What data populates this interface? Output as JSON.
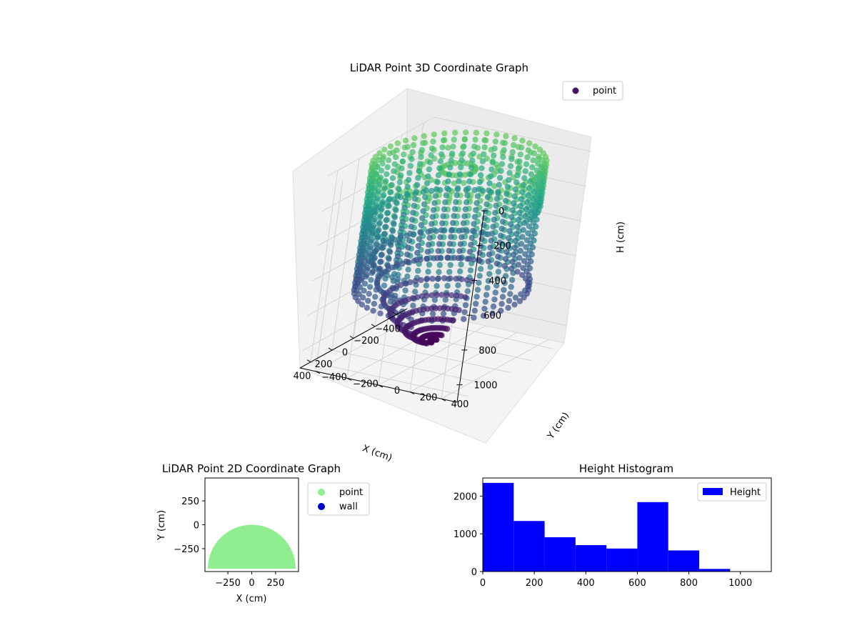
{
  "chart_data": [
    {
      "id": "lidar-3d",
      "type": "scatter",
      "title": "LiDAR Point 3D Coordinate Graph",
      "xlabel": "X (cm)",
      "ylabel": "Y (cm)",
      "zlabel": "H (cm)",
      "xlim": [
        -500,
        500
      ],
      "ylim": [
        -500,
        500
      ],
      "zlim": [
        1100,
        0
      ],
      "xticks": [
        -400,
        -200,
        0,
        200,
        400
      ],
      "yticks": [
        -400,
        -200,
        0,
        200,
        400
      ],
      "zticks": [
        0,
        200,
        400,
        600,
        800,
        1000
      ],
      "colormap": "viridis",
      "legend": {
        "placement": "top-right",
        "entries": [
          {
            "label": "point",
            "color": "#471365"
          }
        ]
      },
      "grid": true,
      "structure": {
        "wall_radius": 460,
        "wall_height_range": [
          0,
          720
        ],
        "dome_height_range": [
          0,
          1040
        ],
        "opening_azimuth_deg": [
          90,
          130
        ]
      }
    },
    {
      "id": "lidar-2d",
      "type": "scatter",
      "title": "LiDAR Point 2D Coordinate Graph",
      "xlabel": "X (cm)",
      "ylabel": "Y (cm)",
      "xlim": [
        -490,
        490
      ],
      "ylim": [
        -490,
        490
      ],
      "xticks": [
        -250,
        0,
        250
      ],
      "yticks": [
        -250,
        0,
        250
      ],
      "xtick_labels": [
        "−250",
        "0",
        "250"
      ],
      "ytick_labels": [
        "250",
        "0",
        "−250"
      ],
      "legend": {
        "placement": "outside-right",
        "entries": [
          {
            "label": "point",
            "color": "#90ee90"
          },
          {
            "label": "wall",
            "color": "#0000cd"
          }
        ]
      },
      "point_region": {
        "shape": "half-disc",
        "center": [
          0,
          -460
        ],
        "radius": 460,
        "color": "#90ee90"
      }
    },
    {
      "id": "height-hist",
      "type": "bar",
      "title": "Height Histogram",
      "bin_edges": [
        0,
        120,
        240,
        360,
        480,
        600,
        720,
        840,
        960,
        1080
      ],
      "values": [
        2350,
        1340,
        910,
        700,
        610,
        1840,
        560,
        70,
        0
      ],
      "xlim": [
        0,
        1120
      ],
      "ylim": [
        0,
        2480
      ],
      "xticks": [
        0,
        200,
        400,
        600,
        800,
        1000
      ],
      "yticks": [
        0,
        1000,
        2000
      ],
      "color": "#0000ff",
      "legend": {
        "placement": "top-right",
        "entries": [
          {
            "label": "Height",
            "color": "#0000ff"
          }
        ]
      }
    }
  ]
}
